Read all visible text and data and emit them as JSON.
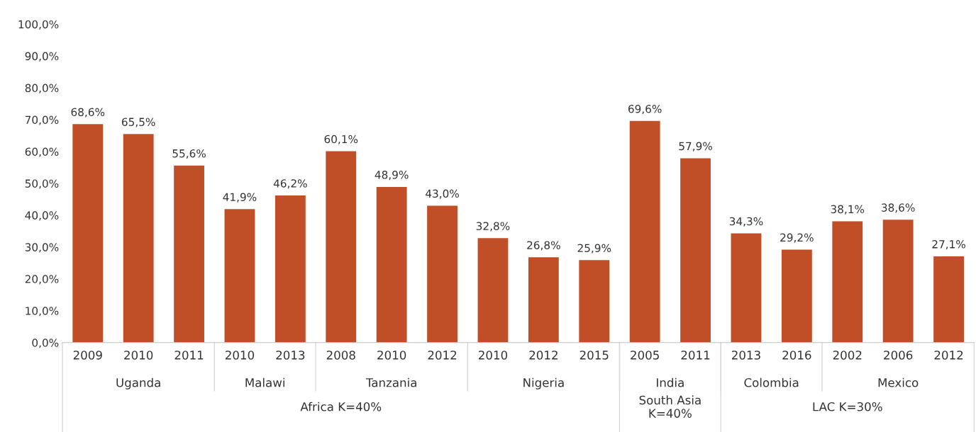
{
  "chart_data": {
    "type": "bar",
    "categories": [
      "2009",
      "2010",
      "2011",
      "2010",
      "2013",
      "2008",
      "2010",
      "2012",
      "2010",
      "2012",
      "2015",
      "2005",
      "2011",
      "2013",
      "2016",
      "2002",
      "2006",
      "2012"
    ],
    "values": [
      68.6,
      65.5,
      55.6,
      41.9,
      46.2,
      60.1,
      48.9,
      43.0,
      32.8,
      26.8,
      25.9,
      69.6,
      57.9,
      34.3,
      29.2,
      38.1,
      38.6,
      27.1
    ],
    "value_labels": [
      "68,6%",
      "65,5%",
      "55,6%",
      "41,9%",
      "46,2%",
      "60,1%",
      "48,9%",
      "43,0%",
      "32,8%",
      "26,8%",
      "25,9%",
      "69,6%",
      "57,9%",
      "34,3%",
      "29,2%",
      "38,1%",
      "38,6%",
      "27,1%"
    ],
    "color": "#c04f28",
    "ylim": [
      0,
      100
    ],
    "yticks": [
      {
        "value": 0,
        "label": "0,0%"
      },
      {
        "value": 10,
        "label": "10,0%"
      },
      {
        "value": 20,
        "label": "20,0%"
      },
      {
        "value": 30,
        "label": "30,0%"
      },
      {
        "value": 40,
        "label": "40,0%"
      },
      {
        "value": 50,
        "label": "50,0%"
      },
      {
        "value": 60,
        "label": "60,0%"
      },
      {
        "value": 70,
        "label": "70,0%"
      },
      {
        "value": 80,
        "label": "80,0%"
      },
      {
        "value": 90,
        "label": "90,0%"
      },
      {
        "value": 100,
        "label": "100,0%"
      }
    ],
    "annotations": [
      "Uganda",
      "Malawi",
      "Tanzania",
      "Nigeria",
      "India",
      "Colombia",
      "Mexico",
      "Africa K=40%",
      "South Asia\nK=40%",
      "LAC K=30%"
    ],
    "grid": false,
    "legend": false
  }
}
